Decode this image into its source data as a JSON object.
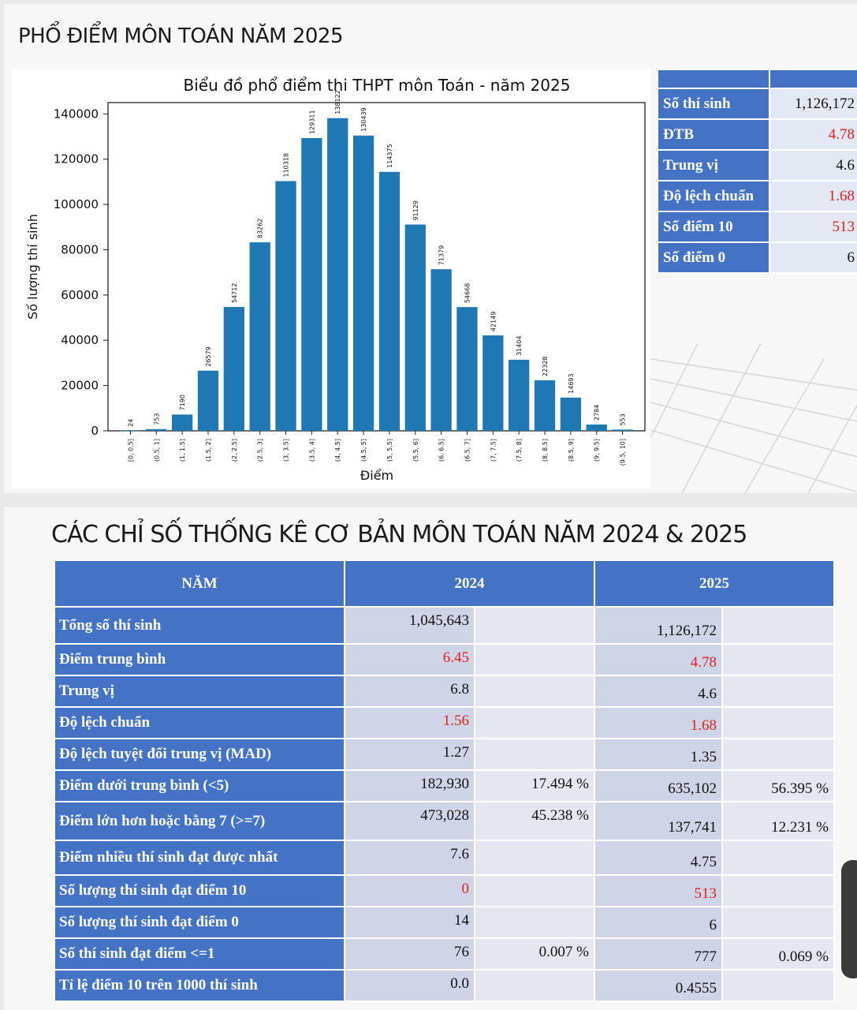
{
  "section1_title": "PHỔ ĐIỂM MÔN TOÁN NĂM 2025",
  "section2_title": "CÁC CHỈ SỐ THỐNG KÊ CƠ BẢN MÔN TOÁN NĂM 2024 & 2025",
  "chart_data": {
    "type": "bar",
    "title": "Biểu đồ phổ điểm thi THPT môn Toán - năm 2025",
    "xlabel": "Điểm",
    "ylabel": "Số lượng thí sinh",
    "ylim": [
      0,
      145000
    ],
    "yticks": [
      0,
      20000,
      40000,
      60000,
      80000,
      100000,
      120000,
      140000
    ],
    "bar_color": "#1f77b4",
    "categories": [
      "[0, 0.5]",
      "(0.5, 1]",
      "(1, 1.5]",
      "(1.5, 2]",
      "(2, 2.5]",
      "(2.5, 3]",
      "(3, 3.5]",
      "(3.5, 4]",
      "(4, 4.5]",
      "(4.5, 5]",
      "(5, 5.5]",
      "(5.5, 6]",
      "(6, 6.5]",
      "(6.5, 7]",
      "(7, 7.5]",
      "(7.5, 8]",
      "(8, 8.5]",
      "(8.5, 9]",
      "(9, 9.5]",
      "(9.5, 10]"
    ],
    "values": [
      24,
      753,
      7190,
      26579,
      54712,
      83262,
      110318,
      129311,
      138122,
      130439,
      114375,
      91129,
      71379,
      54668,
      42149,
      31404,
      22328,
      14693,
      2784,
      553
    ]
  },
  "side_stats": [
    {
      "label": "Số thí sinh",
      "value": "1,126,172",
      "highlight": false
    },
    {
      "label": "ĐTB",
      "value": "4.78",
      "highlight": true
    },
    {
      "label": "Trung vị",
      "value": "4.6",
      "highlight": false
    },
    {
      "label": "Độ lệch chuẩn",
      "value": "1.68",
      "highlight": true
    },
    {
      "label": "Số điểm 10",
      "value": "513",
      "highlight": true
    },
    {
      "label": "Số điểm 0",
      "value": "6",
      "highlight": false
    }
  ],
  "table": {
    "headers": [
      "NĂM",
      "2024",
      "2025"
    ],
    "rows": [
      {
        "label": "Tổng số thí sinh",
        "v2024": "1,045,643",
        "p2024": "",
        "v2025": "1,126,172",
        "p2025": "",
        "red": false
      },
      {
        "label": "Điểm trung bình",
        "v2024": "6.45",
        "p2024": "",
        "v2025": "4.78",
        "p2025": "",
        "red": true
      },
      {
        "label": "Trung vị",
        "v2024": "6.8",
        "p2024": "",
        "v2025": "4.6",
        "p2025": "",
        "red": false
      },
      {
        "label": "Độ lệch chuẩn",
        "v2024": "1.56",
        "p2024": "",
        "v2025": "1.68",
        "p2025": "",
        "red": true
      },
      {
        "label": "Độ lệch tuyệt đối trung vị (MAD)",
        "v2024": "1.27",
        "p2024": "",
        "v2025": "1.35",
        "p2025": "",
        "red": false
      },
      {
        "label": "Điểm dưới trung bình (<5)",
        "v2024": "182,930",
        "p2024": "17.494 %",
        "v2025": "635,102",
        "p2025": "56.395 %",
        "red": false
      },
      {
        "label": "Điểm lớn hơn hoặc bằng 7 (>=7)",
        "v2024": "473,028",
        "p2024": "45.238 %",
        "v2025": "137,741",
        "p2025": "12.231 %",
        "red": false
      },
      {
        "label": "Điểm nhiều thí sinh đạt được nhất",
        "v2024": "7.6",
        "p2024": "",
        "v2025": "4.75",
        "p2025": "",
        "red": false
      },
      {
        "label": "Số lượng thí sinh đạt điểm 10",
        "v2024": "0",
        "p2024": "",
        "v2025": "513",
        "p2025": "",
        "red": true
      },
      {
        "label": "Số lượng thí sinh đạt điểm 0",
        "v2024": "14",
        "p2024": "",
        "v2025": "6",
        "p2025": "",
        "red": false
      },
      {
        "label": "Số thí sinh đạt điểm <=1",
        "v2024": "76",
        "p2024": "0.007 %",
        "v2025": "777",
        "p2025": "0.069 %",
        "red": false
      },
      {
        "label": "Tỉ lệ điểm 10 trên 1000 thí sinh",
        "v2024": "0.0",
        "p2024": "",
        "v2025": "0.4555",
        "p2025": "",
        "red": false
      }
    ]
  }
}
